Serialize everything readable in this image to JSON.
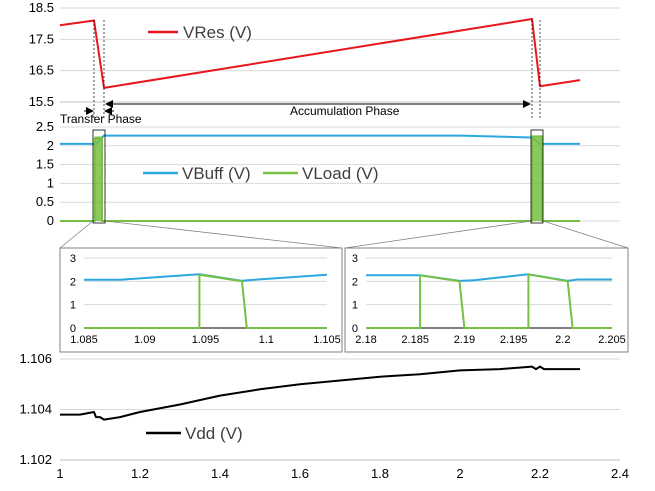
{
  "colors": {
    "vres": "#e8161d",
    "vbuff": "#2aa8df",
    "vload": "#77c043",
    "vdd": "#000000",
    "grid": "#d9d9d9"
  },
  "annotations": {
    "transfer_phase": "Transfer Phase",
    "accumulation_phase": "Accumulation Phase"
  },
  "chart_data": [
    {
      "id": "vres",
      "type": "line",
      "title": "",
      "xlabel": "",
      "ylabel": "",
      "xlim": [
        1,
        2.4
      ],
      "ylim": [
        15.5,
        18.5
      ],
      "yticks": [
        "18.5",
        "17.5",
        "16.5",
        "15.5"
      ],
      "yticks_values": [
        18.5,
        17.5,
        16.5,
        15.5
      ],
      "grid": true,
      "legend": "top-left",
      "series": [
        {
          "name": "VRes (V)",
          "x": [
            1,
            1.085,
            1.11,
            2.18,
            2.2,
            2.3
          ],
          "y": [
            17.95,
            18.1,
            15.95,
            18.15,
            16.0,
            16.2
          ]
        }
      ]
    },
    {
      "id": "buffer",
      "type": "line",
      "title": "",
      "xlabel": "",
      "ylabel": "",
      "xlim": [
        1,
        2.4
      ],
      "ylim": [
        0,
        2.5
      ],
      "yticks": [
        "2.5",
        "2",
        "1.5",
        "1",
        "0.5",
        "0"
      ],
      "yticks_values": [
        2.5,
        2,
        1.5,
        1,
        0.5,
        0
      ],
      "grid": true,
      "legend": "center",
      "series": [
        {
          "name": "VBuff (V)",
          "x": [
            1,
            1.09,
            1.11,
            2.0,
            2.18,
            2.2,
            2.3
          ],
          "y": [
            2.05,
            2.05,
            2.27,
            2.27,
            2.22,
            2.05,
            2.05
          ]
        },
        {
          "name": "VLoad (V)",
          "x": [
            1,
            1.087,
            1.087,
            1.105,
            1.105,
            2.18,
            2.18,
            2.205,
            2.205,
            2.3
          ],
          "y": [
            0,
            0,
            2.2,
            2.2,
            0,
            0,
            2.25,
            2.25,
            0,
            0
          ]
        }
      ]
    },
    {
      "id": "zoom-left",
      "type": "line",
      "title": "",
      "xlabel": "",
      "ylabel": "",
      "xlim": [
        1.085,
        1.105
      ],
      "ylim": [
        0,
        3
      ],
      "xticks": [
        "1.085",
        "1.09",
        "1.095",
        "1.1",
        "1.105"
      ],
      "xticks_values": [
        1.085,
        1.09,
        1.095,
        1.1,
        1.105
      ],
      "yticks": [
        "3",
        "2",
        "1",
        "0"
      ],
      "yticks_values": [
        3,
        2,
        1,
        0
      ],
      "grid": true,
      "series": [
        {
          "name": "VBuff (V)",
          "x": [
            1.085,
            1.088,
            1.0945,
            1.098,
            1.0985,
            1.105
          ],
          "y": [
            2.07,
            2.07,
            2.3,
            2.02,
            2.05,
            2.28
          ]
        },
        {
          "name": "VLoad (V)",
          "x": [
            1.085,
            1.0945,
            1.0945,
            1.098,
            1.0984,
            1.105
          ],
          "y": [
            0,
            0,
            2.28,
            2.0,
            0,
            0
          ]
        }
      ]
    },
    {
      "id": "zoom-right",
      "type": "line",
      "title": "",
      "xlabel": "",
      "ylabel": "",
      "xlim": [
        2.18,
        2.205
      ],
      "ylim": [
        0,
        3
      ],
      "xticks": [
        "2.18",
        "2.185",
        "2.19",
        "2.195",
        "2.2",
        "2.205"
      ],
      "xticks_values": [
        2.18,
        2.185,
        2.19,
        2.195,
        2.2,
        2.205
      ],
      "yticks": [
        "3",
        "2",
        "1",
        "0"
      ],
      "yticks_values": [
        3,
        2,
        1,
        0
      ],
      "grid": true,
      "series": [
        {
          "name": "VBuff (V)",
          "x": [
            2.18,
            2.1855,
            2.1895,
            2.191,
            2.1965,
            2.2005,
            2.2015,
            2.205
          ],
          "y": [
            2.26,
            2.26,
            2.02,
            2.05,
            2.3,
            2.02,
            2.08,
            2.08
          ]
        },
        {
          "name": "VLoad (V)",
          "x": [
            2.18,
            2.1855,
            2.1855,
            2.1895,
            2.19,
            2.1965,
            2.1965,
            2.2005,
            2.201,
            2.205
          ],
          "y": [
            0,
            0,
            2.26,
            2.0,
            0,
            0,
            2.3,
            2.0,
            0,
            0
          ]
        }
      ]
    },
    {
      "id": "vdd",
      "type": "line",
      "title": "",
      "xlabel": "",
      "ylabel": "",
      "xlim": [
        1,
        2.4
      ],
      "ylim": [
        1.102,
        1.106
      ],
      "xticks": [
        "1",
        "1.2",
        "1.4",
        "1.6",
        "1.8",
        "2",
        "2.2",
        "2.4"
      ],
      "xticks_values": [
        1,
        1.2,
        1.4,
        1.6,
        1.8,
        2,
        2.2,
        2.4
      ],
      "yticks": [
        "1.106",
        "1.104",
        "1.102"
      ],
      "yticks_values": [
        1.106,
        1.104,
        1.102
      ],
      "grid": true,
      "legend": "bottom-left",
      "series": [
        {
          "name": "Vdd (V)",
          "x": [
            1,
            1.05,
            1.085,
            1.09,
            1.1,
            1.11,
            1.15,
            1.2,
            1.3,
            1.4,
            1.5,
            1.6,
            1.7,
            1.8,
            1.9,
            2.0,
            2.1,
            2.18,
            2.19,
            2.2,
            2.21,
            2.3
          ],
          "y": [
            1.1038,
            1.1038,
            1.1039,
            1.1037,
            1.1037,
            1.1036,
            1.1037,
            1.1039,
            1.1042,
            1.10455,
            1.1048,
            1.105,
            1.10515,
            1.1053,
            1.1054,
            1.10555,
            1.1056,
            1.1057,
            1.1056,
            1.1057,
            1.1056,
            1.1056
          ]
        }
      ]
    }
  ]
}
